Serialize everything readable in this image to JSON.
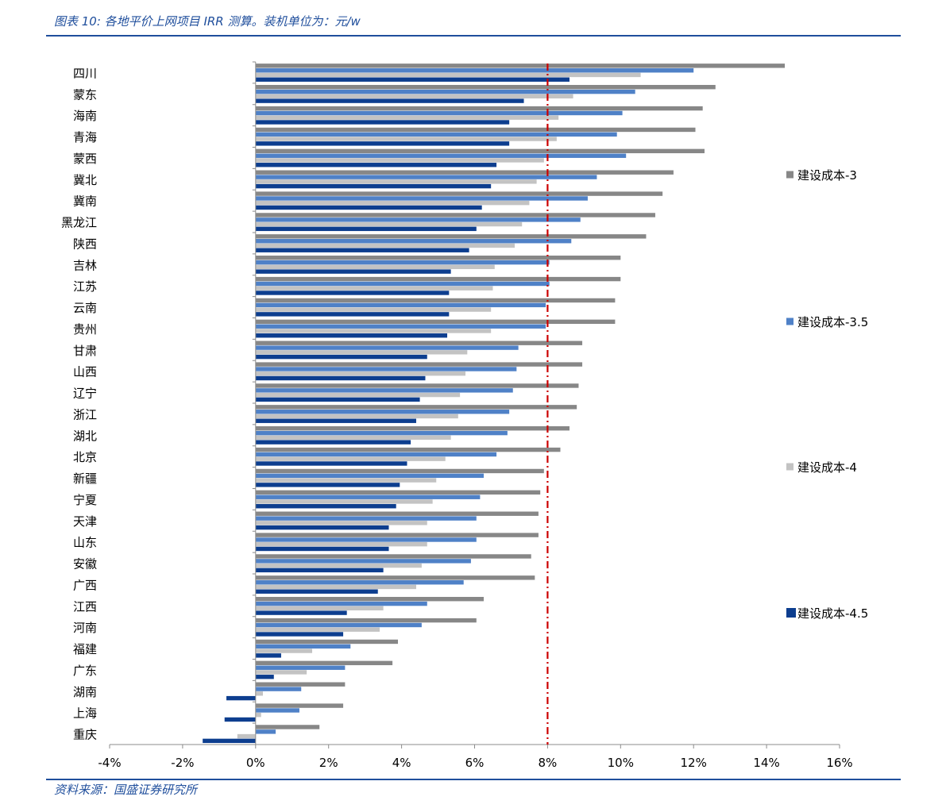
{
  "caption": "图表 10:  各地平价上网项目 IRR 测算。装机单位为：元/w",
  "source": "资料来源：国盛证券研究所",
  "colors": {
    "series1": "#878787",
    "series2": "#4f81c7",
    "series3": "#c3c3c3",
    "series4": "#0d3e8f",
    "refline": "#cc0000",
    "axis": "#8c8c8c"
  },
  "chart_data": {
    "type": "bar",
    "orientation": "horizontal",
    "categories": [
      "四川",
      "蒙东",
      "海南",
      "青海",
      "蒙西",
      "冀北",
      "冀南",
      "黑龙江",
      "陕西",
      "吉林",
      "江苏",
      "云南",
      "贵州",
      "甘肃",
      "山西",
      "辽宁",
      "浙江",
      "湖北",
      "北京",
      "新疆",
      "宁夏",
      "天津",
      "山东",
      "安徽",
      "广西",
      "江西",
      "河南",
      "福建",
      "广东",
      "湖南",
      "上海",
      "重庆"
    ],
    "series": [
      {
        "name": "建设成本-3",
        "values": [
          14.5,
          12.6,
          12.25,
          12.05,
          12.3,
          11.45,
          11.15,
          10.95,
          10.7,
          10.0,
          10.0,
          9.85,
          9.85,
          8.95,
          8.95,
          8.85,
          8.8,
          8.6,
          8.35,
          7.9,
          7.8,
          7.75,
          7.75,
          7.55,
          7.65,
          6.25,
          6.05,
          3.9,
          3.75,
          2.45,
          2.4,
          1.75
        ]
      },
      {
        "name": "建设成本-3.5",
        "values": [
          12.0,
          10.4,
          10.05,
          9.9,
          10.15,
          9.35,
          9.1,
          8.9,
          8.65,
          8.05,
          8.05,
          7.95,
          7.95,
          7.2,
          7.15,
          7.05,
          6.95,
          6.9,
          6.6,
          6.25,
          6.15,
          6.05,
          6.05,
          5.9,
          5.7,
          4.7,
          4.55,
          2.6,
          2.45,
          1.25,
          1.2,
          0.55
        ]
      },
      {
        "name": "建设成本-4",
        "values": [
          10.55,
          8.7,
          8.3,
          8.25,
          7.9,
          7.7,
          7.5,
          7.3,
          7.1,
          6.55,
          6.5,
          6.45,
          6.45,
          5.8,
          5.75,
          5.6,
          5.55,
          5.35,
          5.2,
          4.95,
          4.85,
          4.7,
          4.7,
          4.55,
          4.4,
          3.5,
          3.4,
          1.55,
          1.4,
          0.2,
          0.15,
          -0.5
        ]
      },
      {
        "name": "建设成本-4.5",
        "values": [
          8.6,
          7.35,
          6.95,
          6.95,
          6.6,
          6.45,
          6.2,
          6.05,
          5.85,
          5.35,
          5.3,
          5.3,
          5.25,
          4.7,
          4.65,
          4.5,
          4.4,
          4.25,
          4.15,
          3.95,
          3.85,
          3.65,
          3.65,
          3.5,
          3.35,
          2.5,
          2.4,
          0.7,
          0.5,
          -0.8,
          -0.85,
          -1.45
        ]
      }
    ],
    "xlim": [
      -4,
      16
    ],
    "xticks": [
      -4,
      -2,
      0,
      2,
      4,
      6,
      8,
      10,
      12,
      14,
      16
    ],
    "xtick_labels": [
      "-4%",
      "-2%",
      "0%",
      "2%",
      "4%",
      "6%",
      "8%",
      "10%",
      "12%",
      "14%",
      "16%"
    ],
    "reference_line": 8,
    "legend_position": "right",
    "title": "",
    "xlabel": "",
    "ylabel": ""
  }
}
